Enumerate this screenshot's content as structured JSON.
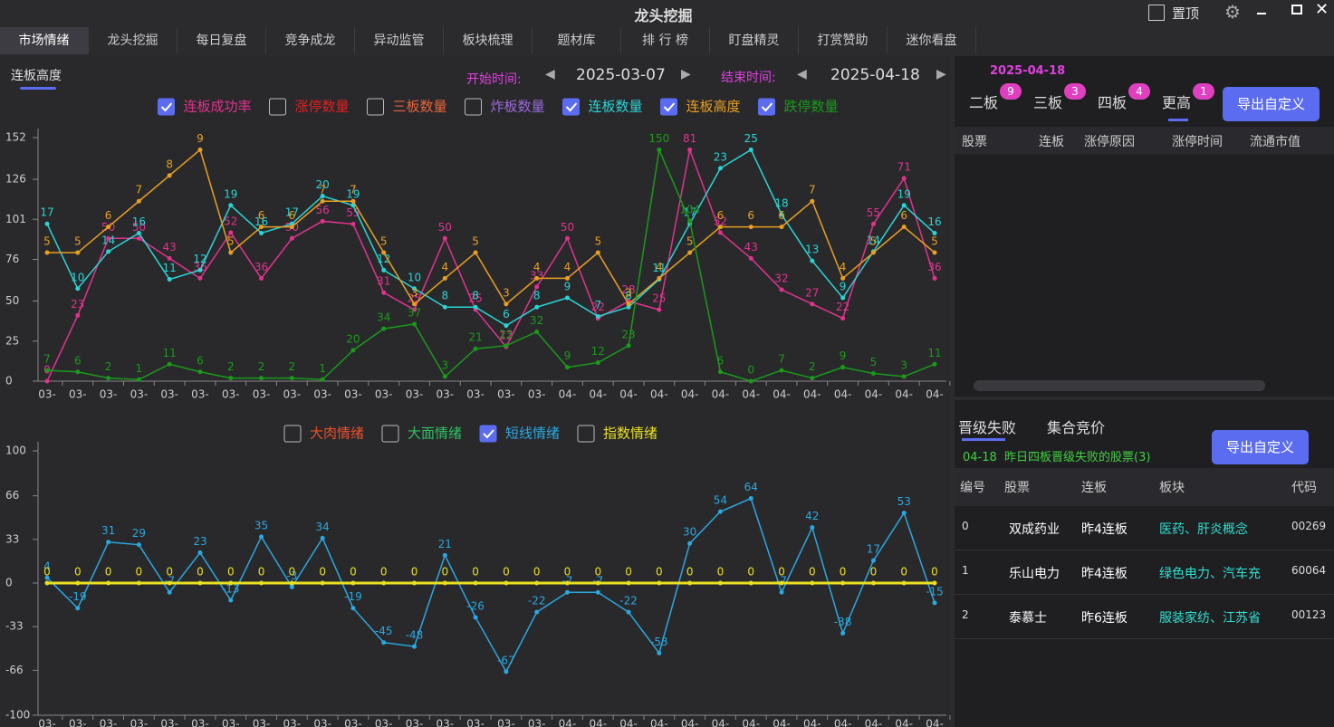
{
  "window": {
    "title": "龙头挖掘",
    "pin": "置顶"
  },
  "tabs": [
    "市场情绪",
    "龙头挖掘",
    "每日复盘",
    "竞争成龙",
    "异动监管",
    "板块梳理",
    "题材库",
    "排 行 榜",
    "盯盘精灵",
    "打赏赞助",
    "迷你看盘"
  ],
  "subtab": "连板高度",
  "date_range": {
    "start_label": "开始时间:",
    "start": "2025-03-07",
    "end_label": "结束时间:",
    "end": "2025-04-18"
  },
  "chart_data": [
    {
      "type": "line",
      "categories": [
        "03-",
        "03-",
        "03-",
        "03-",
        "03-",
        "03-",
        "03-",
        "03-",
        "03-",
        "03-",
        "03-",
        "03-",
        "03-",
        "03-",
        "03-",
        "03-",
        "03-",
        "04-",
        "04-",
        "04-",
        "04-",
        "04-",
        "04-",
        "04-",
        "04-",
        "04-",
        "04-",
        "04-",
        "04-",
        "04-"
      ],
      "ylim": [
        0,
        152
      ],
      "yticks": [
        0,
        25,
        50,
        76,
        101,
        126,
        152
      ],
      "series": [
        {
          "name": "连板成功率",
          "color": "#e0338c",
          "checked": true,
          "values": [
            0,
            23,
            50,
            50,
            43,
            36,
            52,
            36,
            50,
            56,
            55,
            31,
            25,
            50,
            25,
            12,
            33,
            50,
            22,
            28,
            25,
            81,
            52,
            43,
            32,
            27,
            22,
            55,
            71,
            36
          ]
        },
        {
          "name": "涨停数量",
          "color": "#e02020",
          "checked": false
        },
        {
          "name": "三板数量",
          "color": "#e8643c",
          "checked": false
        },
        {
          "name": "炸板数量",
          "color": "#9a6adb",
          "checked": false
        },
        {
          "name": "连板数量",
          "color": "#2ad4d4",
          "checked": true,
          "values": [
            17,
            10,
            14,
            16,
            11,
            12,
            19,
            16,
            17,
            20,
            19,
            12,
            10,
            8,
            8,
            6,
            8,
            9,
            7,
            8,
            11,
            17,
            23,
            25,
            18,
            13,
            9,
            14,
            19,
            16
          ]
        },
        {
          "name": "连板高度",
          "color": "#e8a020",
          "checked": true,
          "values": [
            5,
            5,
            6,
            7,
            8,
            9,
            5,
            6,
            6,
            7,
            7,
            5,
            3,
            4,
            5,
            3,
            4,
            4,
            5,
            3,
            4,
            5,
            6,
            6,
            6,
            7,
            4,
            5,
            6,
            5
          ]
        },
        {
          "name": "跌停数量",
          "color": "#1a9a1a",
          "checked": true,
          "values": [
            7,
            6,
            2,
            1,
            11,
            6,
            2,
            2,
            2,
            1,
            20,
            34,
            37,
            3,
            21,
            23,
            32,
            9,
            12,
            23,
            150,
            104,
            6,
            0,
            7,
            2,
            9,
            5,
            3,
            11
          ]
        }
      ]
    },
    {
      "type": "line",
      "categories": [
        "03-",
        "03-",
        "03-",
        "03-",
        "03-",
        "03-",
        "03-",
        "03-",
        "03-",
        "03-",
        "03-",
        "03-",
        "03-",
        "03-",
        "03-",
        "03-",
        "03-",
        "04-",
        "04-",
        "04-",
        "04-",
        "04-",
        "04-",
        "04-",
        "04-",
        "04-",
        "04-",
        "04-",
        "04-",
        "04-"
      ],
      "ylim": [
        -100,
        100
      ],
      "yticks": [
        -100,
        -66,
        -33,
        0,
        33,
        66,
        100
      ],
      "series": [
        {
          "name": "大肉情绪",
          "color": "#e8502a",
          "checked": false
        },
        {
          "name": "大面情绪",
          "color": "#30c060",
          "checked": false
        },
        {
          "name": "短线情绪",
          "color": "#2aa8e0",
          "checked": true,
          "values": [
            4,
            -19,
            31,
            29,
            -7,
            23,
            -13,
            35,
            -3,
            34,
            -19,
            -45,
            -48,
            21,
            -26,
            -67,
            -22,
            -7,
            -7,
            -22,
            -53,
            30,
            54,
            64,
            -7,
            42,
            -38,
            17,
            53,
            -15
          ]
        },
        {
          "name": "指数情绪",
          "color": "#e8e020",
          "checked": false,
          "values": [
            0,
            0,
            0,
            0,
            0,
            0,
            0,
            0,
            0,
            0,
            0,
            0,
            0,
            0,
            0,
            0,
            0,
            0,
            0,
            0,
            0,
            0,
            0,
            0,
            0,
            0,
            0,
            0,
            0,
            0
          ]
        }
      ]
    }
  ],
  "right_top": {
    "date": "2025-04-18",
    "tabs": [
      {
        "label": "二板",
        "count": "9"
      },
      {
        "label": "三板",
        "count": "3"
      },
      {
        "label": "四板",
        "count": "4"
      },
      {
        "label": "更高",
        "count": "1"
      }
    ],
    "button": "导出自定义",
    "headers": [
      "股票",
      "连板",
      "涨停原因",
      "涨停时间",
      "流通市值"
    ]
  },
  "right_bottom": {
    "tabs": [
      "晋级失败",
      "集合竞价"
    ],
    "note": "04-18  昨日四板晋级失败的股票(3)",
    "button": "导出自定义",
    "headers": [
      "编号",
      "股票",
      "连板",
      "板块",
      "代码"
    ],
    "rows": [
      [
        "0",
        "双成药业",
        "昨4连板",
        "医药、肝炎概念",
        "00269"
      ],
      [
        "1",
        "乐山电力",
        "昨4连板",
        "绿色电力、汽车充",
        "60064"
      ],
      [
        "2",
        "泰慕士",
        "昨6连板",
        "服装家纺、江苏省",
        "00123"
      ]
    ]
  }
}
